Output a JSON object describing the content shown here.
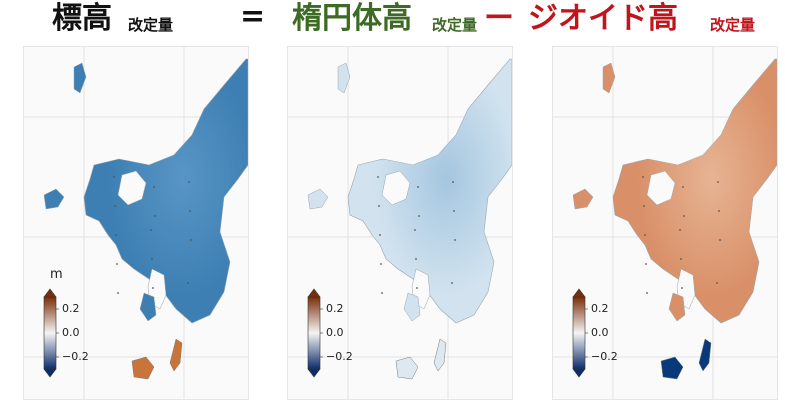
{
  "headline": {
    "term1": "標高",
    "term1_sub": "改定量",
    "equals": "=",
    "term2": "楕円体高",
    "term2_sub": "改定量",
    "minus": "ー",
    "term3": "ジオイド高",
    "term3_sub": "改定量",
    "colors": {
      "term1": "#111111",
      "term2": "#3d6b25",
      "term3": "#c0151c"
    }
  },
  "colorbar": {
    "unit": "m",
    "ticks": [
      "0.2",
      "0.0",
      "−0.2"
    ],
    "range": [
      -0.3,
      0.3
    ],
    "colors": {
      "low": "#0c2d6b",
      "mid": "#f4f4f4",
      "high": "#7a2e0a"
    }
  },
  "panels": [
    {
      "name": "elevation-change",
      "main": "#3e7fb3",
      "tint": "#5a98c7",
      "islands": "#c8743a",
      "colorbar_unit_shown": true
    },
    {
      "name": "ellipsoid-height-change",
      "main": "#d2e3ef",
      "tint": "#9fc3de",
      "islands": "#dde8f0",
      "colorbar_unit_shown": false
    },
    {
      "name": "geoid-height-change",
      "main": "#d99068",
      "tint": "#e8b898",
      "islands": "#083a7a",
      "colorbar_unit_shown": false
    }
  ]
}
